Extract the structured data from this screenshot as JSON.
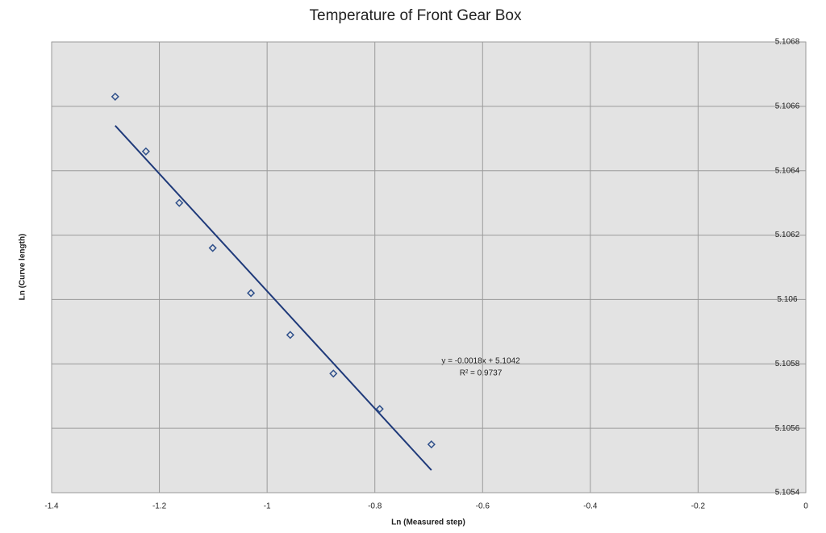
{
  "chart_data": {
    "type": "scatter",
    "title": "Temperature of Front Gear Box",
    "x_label": "Ln (Measured step)",
    "y_label": "Ln (Curve length)",
    "x": [
      -1.282,
      -1.225,
      -1.163,
      -1.101,
      -1.03,
      -0.957,
      -0.877,
      -0.791,
      -0.695
    ],
    "values": [
      5.10663,
      5.10646,
      5.1063,
      5.10616,
      5.10602,
      5.10589,
      5.10577,
      5.10566,
      5.10555
    ],
    "color": "#2e4f8a",
    "trendline": {
      "x": [
        -1.282,
        -0.695
      ],
      "values": [
        5.10654,
        5.10547
      ],
      "color": "#1f3a7a"
    },
    "annotations": [
      "y = -0.0018x + 5.1042",
      "R² = 0.9737"
    ],
    "xlim": [
      -1.4,
      0
    ],
    "xticks": [
      -1.4,
      -1.2,
      -1,
      -0.8,
      -0.6,
      -0.4,
      -0.2,
      0
    ],
    "ylim": [
      5.1054,
      5.1068
    ],
    "yticks": [
      5.1054,
      5.1056,
      5.1058,
      5.106,
      5.1062,
      5.1064,
      5.1066,
      5.1068
    ],
    "grid": true
  }
}
